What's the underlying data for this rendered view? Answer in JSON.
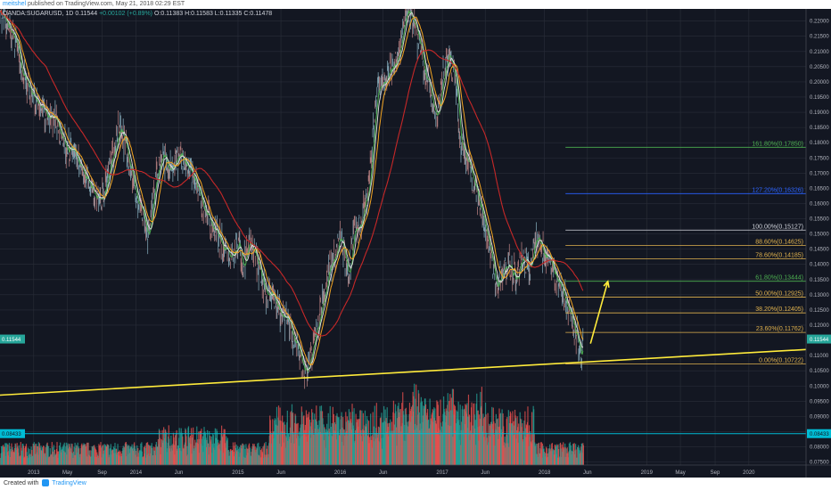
{
  "header": {
    "publisher": "meitshel",
    "published_text": "published on TradingView.com, May 21, 2018 02:29 EST",
    "symbol_line": "OANDA:SUGARUSD, 1D",
    "price": "0.11544",
    "change": "+0.00102 (+0.89%)",
    "ohlc": "O:0.11383 H:0.11583 L:0.11335 C:0.11478"
  },
  "footer": {
    "created_with": "Created with",
    "brand": "TradingView"
  },
  "chart_data": {
    "type": "line",
    "y_axis": {
      "range": [
        0.074,
        0.224
      ],
      "ticks": [
        "0.22000",
        "0.21500",
        "0.21000",
        "0.20500",
        "0.20000",
        "0.19500",
        "0.19000",
        "0.18500",
        "0.18000",
        "0.17500",
        "0.17000",
        "0.16500",
        "0.16000",
        "0.15500",
        "0.15000",
        "0.14500",
        "0.14000",
        "0.13500",
        "0.13000",
        "0.12500",
        "0.12000",
        "0.11000",
        "0.10500",
        "0.10000",
        "0.09500",
        "0.09000",
        "0.08500",
        "0.08000",
        "0.07500"
      ],
      "current_price_label": "0.11544",
      "volume_level_label": "0.08433"
    },
    "x_axis": {
      "labels": [
        {
          "label": "2013",
          "t": 2013.0
        },
        {
          "label": "May",
          "t": 2013.33
        },
        {
          "label": "Sep",
          "t": 2013.67
        },
        {
          "label": "2014",
          "t": 2014.0
        },
        {
          "label": "Jun",
          "t": 2014.42
        },
        {
          "label": "2015",
          "t": 2015.0
        },
        {
          "label": "Jun",
          "t": 2015.42
        },
        {
          "label": "2016",
          "t": 2016.0
        },
        {
          "label": "Jun",
          "t": 2016.42
        },
        {
          "label": "2017",
          "t": 2017.0
        },
        {
          "label": "Jun",
          "t": 2017.42
        },
        {
          "label": "2018",
          "t": 2018.0
        },
        {
          "label": "Jun",
          "t": 2018.42
        },
        {
          "label": "2019",
          "t": 2019.0
        },
        {
          "label": "May",
          "t": 2019.33
        },
        {
          "label": "Sep",
          "t": 2019.67
        },
        {
          "label": "2020",
          "t": 2020.0
        }
      ],
      "range": [
        2012.67,
        2020.56
      ]
    },
    "price_series": {
      "name": "",
      "points": [
        [
          2012.67,
          0.224
        ],
        [
          2012.8,
          0.215
        ],
        [
          2012.9,
          0.202
        ],
        [
          2013.0,
          0.196
        ],
        [
          2013.1,
          0.19
        ],
        [
          2013.2,
          0.188
        ],
        [
          2013.3,
          0.18
        ],
        [
          2013.4,
          0.176
        ],
        [
          2013.5,
          0.17
        ],
        [
          2013.6,
          0.164
        ],
        [
          2013.67,
          0.162
        ],
        [
          2013.75,
          0.172
        ],
        [
          2013.85,
          0.186
        ],
        [
          2013.92,
          0.176
        ],
        [
          2014.0,
          0.162
        ],
        [
          2014.08,
          0.156
        ],
        [
          2014.12,
          0.148
        ],
        [
          2014.18,
          0.165
        ],
        [
          2014.25,
          0.176
        ],
        [
          2014.35,
          0.172
        ],
        [
          2014.45,
          0.176
        ],
        [
          2014.55,
          0.17
        ],
        [
          2014.62,
          0.162
        ],
        [
          2014.7,
          0.156
        ],
        [
          2014.8,
          0.15
        ],
        [
          2014.9,
          0.142
        ],
        [
          2015.0,
          0.146
        ],
        [
          2015.05,
          0.14
        ],
        [
          2015.12,
          0.148
        ],
        [
          2015.2,
          0.139
        ],
        [
          2015.28,
          0.13
        ],
        [
          2015.35,
          0.128
        ],
        [
          2015.42,
          0.123
        ],
        [
          2015.5,
          0.12
        ],
        [
          2015.58,
          0.112
        ],
        [
          2015.65,
          0.104
        ],
        [
          2015.72,
          0.11
        ],
        [
          2015.8,
          0.123
        ],
        [
          2015.88,
          0.138
        ],
        [
          2015.95,
          0.143
        ],
        [
          2016.0,
          0.15
        ],
        [
          2016.08,
          0.134
        ],
        [
          2016.12,
          0.148
        ],
        [
          2016.2,
          0.153
        ],
        [
          2016.28,
          0.165
        ],
        [
          2016.35,
          0.195
        ],
        [
          2016.45,
          0.202
        ],
        [
          2016.55,
          0.206
        ],
        [
          2016.65,
          0.224
        ],
        [
          2016.72,
          0.22
        ],
        [
          2016.8,
          0.208
        ],
        [
          2016.88,
          0.196
        ],
        [
          2016.95,
          0.188
        ],
        [
          2017.0,
          0.202
        ],
        [
          2017.05,
          0.208
        ],
        [
          2017.12,
          0.204
        ],
        [
          2017.18,
          0.18
        ],
        [
          2017.25,
          0.174
        ],
        [
          2017.32,
          0.164
        ],
        [
          2017.4,
          0.156
        ],
        [
          2017.48,
          0.144
        ],
        [
          2017.52,
          0.132
        ],
        [
          2017.58,
          0.138
        ],
        [
          2017.65,
          0.14
        ],
        [
          2017.72,
          0.135
        ],
        [
          2017.78,
          0.142
        ],
        [
          2017.85,
          0.138
        ],
        [
          2017.92,
          0.15
        ],
        [
          2017.98,
          0.144
        ],
        [
          2018.05,
          0.142
        ],
        [
          2018.12,
          0.135
        ],
        [
          2018.18,
          0.132
        ],
        [
          2018.25,
          0.122
        ],
        [
          2018.32,
          0.116
        ],
        [
          2018.36,
          0.109
        ],
        [
          2018.38,
          0.1154
        ]
      ]
    },
    "trendline": {
      "from": [
        2012.67,
        0.097
      ],
      "to": [
        2020.56,
        0.112
      ]
    },
    "projection_arrow": {
      "from": [
        2018.38,
        0.1154
      ],
      "to": [
        2018.62,
        0.1344
      ]
    },
    "fibonacci": {
      "levels": [
        {
          "label": "161.80%(0.17850)",
          "value": 0.1785,
          "color": "#4caf50"
        },
        {
          "label": "127.20%(0.16326)",
          "value": 0.16326,
          "color": "#2962ff"
        },
        {
          "label": "100.00%(0.15127)",
          "value": 0.15127,
          "color": "#d1d4dc"
        },
        {
          "label": "88.60%(0.14625)",
          "value": 0.14625,
          "color": "#e0b24e"
        },
        {
          "label": "78.60%(0.14185)",
          "value": 0.14185,
          "color": "#e0b24e"
        },
        {
          "label": "61.80%(0.13444)",
          "value": 0.13444,
          "color": "#4caf50"
        },
        {
          "label": "50.00%(0.12925)",
          "value": 0.12925,
          "color": "#e0b24e"
        },
        {
          "label": "38.20%(0.12405)",
          "value": 0.12405,
          "color": "#e0b24e"
        },
        {
          "label": "23.60%(0.11762)",
          "value": 0.11762,
          "color": "#e0b24e"
        },
        {
          "label": "0.00%(0.10722)",
          "value": 0.10722,
          "color": "#e0b24e"
        }
      ],
      "start_t": 2018.38
    },
    "colors": {
      "background": "#131722",
      "trendline": "#ffeb3b",
      "arrow": "#ffeb3b",
      "ma_long": "#c62828",
      "ma_mid": "#f5a623",
      "ma_short": "#e0e0e0",
      "price_label_bg": "#26a69a",
      "volume_line": "#00bcd4",
      "volume_up": "#26a69a",
      "volume_down": "#ef5350"
    },
    "grid": true
  }
}
